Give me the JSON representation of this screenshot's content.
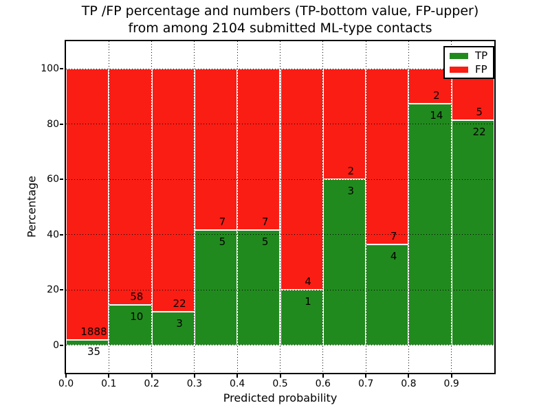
{
  "figure": {
    "title_line1": "TP /FP percentage and numbers (TP-bottom value, FP-upper)",
    "title_line2": "from among 2104 submitted ML-type contacts"
  },
  "axes": {
    "xlabel": "Predicted probability",
    "ylabel": "Percentage"
  },
  "legend": {
    "position": "upper right",
    "items": [
      {
        "label": "TP",
        "color": "#218a1e"
      },
      {
        "label": "FP",
        "color": "#fa1d14"
      }
    ]
  },
  "chart_data": {
    "type": "bar",
    "stacked": true,
    "title": "TP /FP percentage and numbers (TP-bottom value, FP-upper) from among 2104 submitted ML-type contacts",
    "xlabel": "Predicted probability",
    "ylabel": "Percentage",
    "total_submitted": 2104,
    "xlim": [
      0.0,
      1.0
    ],
    "ylim": [
      -10,
      110
    ],
    "bin_width": 0.1,
    "xticks": [
      "0.0",
      "0.1",
      "0.2",
      "0.3",
      "0.4",
      "0.5",
      "0.6",
      "0.7",
      "0.8",
      "0.9"
    ],
    "yticks": [
      0,
      20,
      40,
      60,
      80,
      100
    ],
    "grid": "dotted",
    "legend_position": "upper right",
    "colors": {
      "tp": "#218a1e",
      "fp": "#fa1d14",
      "bar_edge": "#ffffff"
    },
    "bins": [
      {
        "range": "0.0-0.1",
        "tp": 35,
        "fp": 1888,
        "tp_pct": 1.82
      },
      {
        "range": "0.1-0.2",
        "tp": 10,
        "fp": 58,
        "tp_pct": 14.71
      },
      {
        "range": "0.2-0.3",
        "tp": 3,
        "fp": 22,
        "tp_pct": 12.0
      },
      {
        "range": "0.3-0.4",
        "tp": 5,
        "fp": 7,
        "tp_pct": 41.67
      },
      {
        "range": "0.4-0.5",
        "tp": 5,
        "fp": 7,
        "tp_pct": 41.67
      },
      {
        "range": "0.5-0.6",
        "tp": 1,
        "fp": 4,
        "tp_pct": 20.0
      },
      {
        "range": "0.6-0.7",
        "tp": 3,
        "fp": 2,
        "tp_pct": 60.0
      },
      {
        "range": "0.7-0.8",
        "tp": 4,
        "fp": 7,
        "tp_pct": 36.36
      },
      {
        "range": "0.8-0.9",
        "tp": 14,
        "fp": 2,
        "tp_pct": 87.5
      },
      {
        "range": "0.9-1.0",
        "tp": 22,
        "fp": 5,
        "tp_pct": 81.48
      }
    ],
    "series": [
      {
        "name": "TP",
        "color": "#218a1e",
        "values_pct": [
          1.82,
          14.71,
          12.0,
          41.67,
          41.67,
          20.0,
          60.0,
          36.36,
          87.5,
          81.48
        ]
      },
      {
        "name": "FP",
        "color": "#fa1d14",
        "values_pct": [
          98.18,
          85.29,
          88.0,
          58.33,
          58.33,
          80.0,
          40.0,
          63.64,
          12.5,
          18.52
        ]
      }
    ]
  }
}
